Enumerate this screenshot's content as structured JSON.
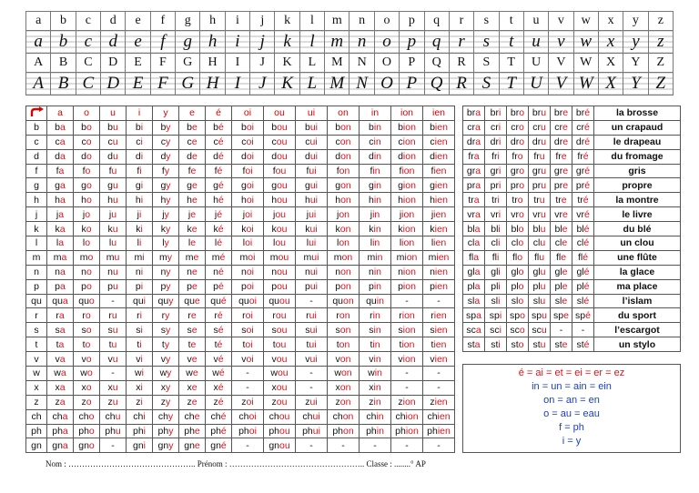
{
  "alphabet": {
    "lower": [
      "a",
      "b",
      "c",
      "d",
      "e",
      "f",
      "g",
      "h",
      "i",
      "j",
      "k",
      "l",
      "m",
      "n",
      "o",
      "p",
      "q",
      "r",
      "s",
      "t",
      "u",
      "v",
      "w",
      "x",
      "y",
      "z"
    ],
    "lower_cursive": [
      "a",
      "b",
      "c",
      "d",
      "e",
      "f",
      "g",
      "h",
      "i",
      "j",
      "k",
      "l",
      "m",
      "n",
      "o",
      "p",
      "q",
      "r",
      "s",
      "t",
      "u",
      "v",
      "w",
      "x",
      "y",
      "z"
    ],
    "upper": [
      "A",
      "B",
      "C",
      "D",
      "E",
      "F",
      "G",
      "H",
      "I",
      "J",
      "K",
      "L",
      "M",
      "N",
      "O",
      "P",
      "Q",
      "R",
      "S",
      "T",
      "U",
      "V",
      "W",
      "X",
      "Y",
      "Z"
    ],
    "upper_cursive": [
      "A",
      "B",
      "C",
      "D",
      "E",
      "F",
      "G",
      "H",
      "I",
      "J",
      "K",
      "L",
      "M",
      "N",
      "O",
      "P",
      "Q",
      "R",
      "S",
      "T",
      "U",
      "V",
      "W",
      "X",
      "Y",
      "Z"
    ]
  },
  "syllables": {
    "header": [
      "a",
      "o",
      "u",
      "i",
      "y",
      "e",
      "é",
      "oi",
      "ou",
      "ui",
      "on",
      "in",
      "ion",
      "ien"
    ],
    "rows": [
      {
        "consonant": "b",
        "cells": [
          "ba",
          "bo",
          "bu",
          "bi",
          "by",
          "be",
          "bé",
          "boi",
          "bou",
          "bui",
          "bon",
          "bin",
          "bion",
          "bien"
        ]
      },
      {
        "consonant": "c",
        "cells": [
          "ca",
          "co",
          "cu",
          "ci",
          "cy",
          "ce",
          "cé",
          "coi",
          "cou",
          "cui",
          "con",
          "cin",
          "cion",
          "cien"
        ]
      },
      {
        "consonant": "d",
        "cells": [
          "da",
          "do",
          "du",
          "di",
          "dy",
          "de",
          "dé",
          "doi",
          "dou",
          "dui",
          "don",
          "din",
          "dion",
          "dien"
        ]
      },
      {
        "consonant": "f",
        "cells": [
          "fa",
          "fo",
          "fu",
          "fi",
          "fy",
          "fe",
          "fé",
          "foi",
          "fou",
          "fui",
          "fon",
          "fin",
          "fion",
          "fien"
        ]
      },
      {
        "consonant": "g",
        "cells": [
          "ga",
          "go",
          "gu",
          "gi",
          "gy",
          "ge",
          "gé",
          "goi",
          "gou",
          "gui",
          "gon",
          "gin",
          "gion",
          "gien"
        ]
      },
      {
        "consonant": "h",
        "cells": [
          "ha",
          "ho",
          "hu",
          "hi",
          "hy",
          "he",
          "hé",
          "hoi",
          "hou",
          "hui",
          "hon",
          "hin",
          "hion",
          "hien"
        ]
      },
      {
        "consonant": "j",
        "cells": [
          "ja",
          "jo",
          "ju",
          "ji",
          "jy",
          "je",
          "jé",
          "joi",
          "jou",
          "jui",
          "jon",
          "jin",
          "jion",
          "jien"
        ]
      },
      {
        "consonant": "k",
        "cells": [
          "ka",
          "ko",
          "ku",
          "ki",
          "ky",
          "ke",
          "ké",
          "koi",
          "kou",
          "kui",
          "kon",
          "kin",
          "kion",
          "kien"
        ]
      },
      {
        "consonant": "l",
        "cells": [
          "la",
          "lo",
          "lu",
          "li",
          "ly",
          "le",
          "lé",
          "loi",
          "lou",
          "lui",
          "lon",
          "lin",
          "lion",
          "lien"
        ]
      },
      {
        "consonant": "m",
        "cells": [
          "ma",
          "mo",
          "mu",
          "mi",
          "my",
          "me",
          "mé",
          "moi",
          "mou",
          "mui",
          "mon",
          "min",
          "mion",
          "mien"
        ]
      },
      {
        "consonant": "n",
        "cells": [
          "na",
          "no",
          "nu",
          "ni",
          "ny",
          "ne",
          "né",
          "noi",
          "nou",
          "nui",
          "non",
          "nin",
          "nion",
          "nien"
        ]
      },
      {
        "consonant": "p",
        "cells": [
          "pa",
          "po",
          "pu",
          "pi",
          "py",
          "pe",
          "pé",
          "poi",
          "pou",
          "pui",
          "pon",
          "pin",
          "pion",
          "pien"
        ]
      },
      {
        "consonant": "qu",
        "cells": [
          "qua",
          "quo",
          "-",
          "qui",
          "quy",
          "que",
          "qué",
          "quoi",
          "quou",
          "-",
          "quon",
          "quin",
          "-",
          "-"
        ]
      },
      {
        "consonant": "r",
        "cells": [
          "ra",
          "ro",
          "ru",
          "ri",
          "ry",
          "re",
          "ré",
          "roi",
          "rou",
          "rui",
          "ron",
          "rin",
          "rion",
          "rien"
        ]
      },
      {
        "consonant": "s",
        "cells": [
          "sa",
          "so",
          "su",
          "si",
          "sy",
          "se",
          "sé",
          "soi",
          "sou",
          "sui",
          "son",
          "sin",
          "sion",
          "sien"
        ]
      },
      {
        "consonant": "t",
        "cells": [
          "ta",
          "to",
          "tu",
          "ti",
          "ty",
          "te",
          "té",
          "toi",
          "tou",
          "tui",
          "ton",
          "tin",
          "tion",
          "tien"
        ]
      },
      {
        "consonant": "v",
        "cells": [
          "va",
          "vo",
          "vu",
          "vi",
          "vy",
          "ve",
          "vé",
          "voi",
          "vou",
          "vui",
          "von",
          "vin",
          "vion",
          "vien"
        ]
      },
      {
        "consonant": "w",
        "cells": [
          "wa",
          "wo",
          "-",
          "wi",
          "wy",
          "we",
          "wé",
          "-",
          "wou",
          "-",
          "won",
          "win",
          "-",
          "-"
        ]
      },
      {
        "consonant": "x",
        "cells": [
          "xa",
          "xo",
          "xu",
          "xi",
          "xy",
          "xe",
          "xé",
          "-",
          "xou",
          "-",
          "xon",
          "xin",
          "-",
          "-"
        ]
      },
      {
        "consonant": "z",
        "cells": [
          "za",
          "zo",
          "zu",
          "zi",
          "zy",
          "ze",
          "zé",
          "zoi",
          "zou",
          "zui",
          "zon",
          "zin",
          "zion",
          "zien"
        ]
      },
      {
        "consonant": "ch",
        "cells": [
          "cha",
          "cho",
          "chu",
          "chi",
          "chy",
          "che",
          "ché",
          "choi",
          "chou",
          "chui",
          "chon",
          "chin",
          "chion",
          "chien"
        ]
      },
      {
        "consonant": "ph",
        "cells": [
          "pha",
          "pho",
          "phu",
          "phi",
          "phy",
          "phe",
          "phé",
          "phoi",
          "phou",
          "phui",
          "phon",
          "phin",
          "phion",
          "phien"
        ]
      },
      {
        "consonant": "gn",
        "cells": [
          "gna",
          "gno",
          "-",
          "gni",
          "gny",
          "gne",
          "gné",
          "-",
          "gnou",
          "-",
          "-",
          "-",
          "-",
          "-"
        ]
      }
    ]
  },
  "clusters": {
    "rows": [
      {
        "cells": [
          "bra",
          "bri",
          "bro",
          "bru",
          "bre",
          "bré"
        ],
        "word": "la brosse"
      },
      {
        "cells": [
          "cra",
          "cri",
          "cro",
          "cru",
          "cre",
          "cré"
        ],
        "word": "un crapaud"
      },
      {
        "cells": [
          "dra",
          "dri",
          "dro",
          "dru",
          "dre",
          "dré"
        ],
        "word": "le drapeau"
      },
      {
        "cells": [
          "fra",
          "fri",
          "fro",
          "fru",
          "fre",
          "fré"
        ],
        "word": "du fromage"
      },
      {
        "cells": [
          "gra",
          "gri",
          "gro",
          "gru",
          "gre",
          "gré"
        ],
        "word": "gris"
      },
      {
        "cells": [
          "pra",
          "pri",
          "pro",
          "pru",
          "pre",
          "pré"
        ],
        "word": "propre"
      },
      {
        "cells": [
          "tra",
          "tri",
          "tro",
          "tru",
          "tre",
          "tré"
        ],
        "word": "la montre"
      },
      {
        "cells": [
          "vra",
          "vri",
          "vro",
          "vru",
          "vre",
          "vré"
        ],
        "word": "le livre"
      },
      {
        "cells": [
          "bla",
          "bli",
          "blo",
          "blu",
          "ble",
          "blé"
        ],
        "word": "du blé"
      },
      {
        "cells": [
          "cla",
          "cli",
          "clo",
          "clu",
          "cle",
          "clé"
        ],
        "word": "un clou"
      },
      {
        "cells": [
          "fla",
          "fli",
          "flo",
          "flu",
          "fle",
          "flé"
        ],
        "word": "une flûte"
      },
      {
        "cells": [
          "gla",
          "gli",
          "glo",
          "glu",
          "gle",
          "glé"
        ],
        "word": "la glace"
      },
      {
        "cells": [
          "pla",
          "pli",
          "plo",
          "plu",
          "ple",
          "plé"
        ],
        "word": "ma place"
      },
      {
        "cells": [
          "sla",
          "sli",
          "slo",
          "slu",
          "sle",
          "slé"
        ],
        "word": "l’islam"
      },
      {
        "cells": [
          "spa",
          "spi",
          "spo",
          "spu",
          "spe",
          "spé"
        ],
        "word": "du sport"
      },
      {
        "cells": [
          "sca",
          "sci",
          "sco",
          "scu",
          "-",
          "-"
        ],
        "word": "l’escargot"
      },
      {
        "cells": [
          "sta",
          "sti",
          "sto",
          "stu",
          "ste",
          "sté"
        ],
        "word": "un stylo"
      }
    ]
  },
  "equivalences": [
    "é = ai = et = ei = er = ez",
    "in = un = ain = ein",
    "on = an = en",
    "o = au = eau",
    "f = ph",
    "i = y"
  ],
  "footer": "Nom : ……………………………………….. Prénom : ………………………………………….. Classe : ........° AP"
}
